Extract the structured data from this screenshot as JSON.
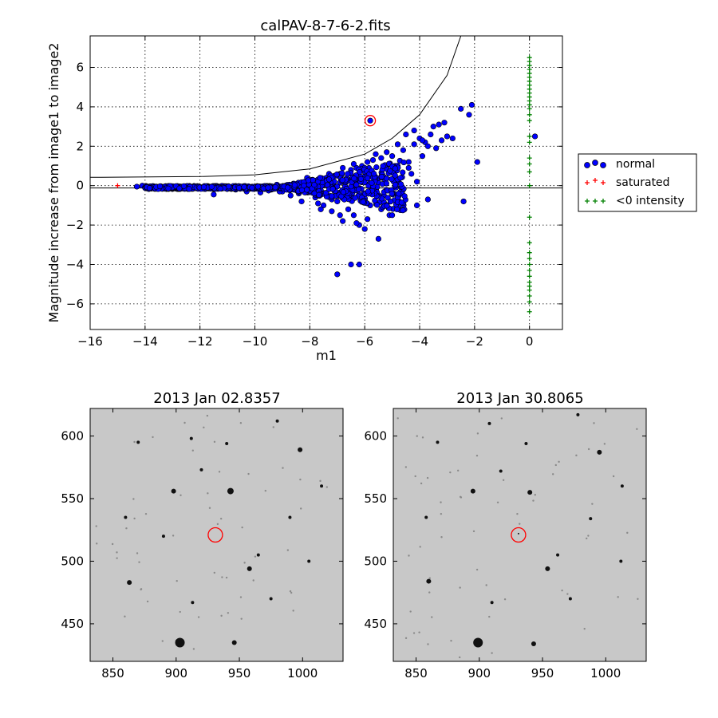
{
  "chart_data": [
    {
      "type": "scatter",
      "title": "calPAV-8-7-6-2.fits",
      "xlabel": "m1",
      "ylabel": "Magnitude increase from image1 to image2",
      "xlim": [
        -16,
        1.2
      ],
      "ylim": [
        -7.3,
        7.6
      ],
      "xticks": [
        -16,
        -14,
        -12,
        -10,
        -8,
        -6,
        -4,
        -2,
        0
      ],
      "xtick_labels": [
        "−16",
        "−14",
        "−12",
        "−10",
        "−8",
        "−6",
        "−4",
        "−2",
        "0"
      ],
      "yticks": [
        -6,
        -4,
        -2,
        0,
        2,
        4,
        6
      ],
      "ytick_labels": [
        "−6",
        "−4",
        "−2",
        "0",
        "2",
        "4",
        "6"
      ],
      "grid": true,
      "legend_position": "outside-right",
      "legend": [
        {
          "label": "normal",
          "marker": "circle",
          "color": "#0000ff"
        },
        {
          "label": "saturated",
          "marker": "plus",
          "color": "#ff0000"
        },
        {
          "label": "<0 intensity",
          "marker": "plus",
          "color": "#008000"
        }
      ],
      "series": [
        {
          "name": "normal",
          "color": "#0000ff",
          "points": [
            [
              -14.3,
              -0.05
            ],
            [
              -14.1,
              0.0
            ],
            [
              -13.9,
              -0.08
            ],
            [
              -13.6,
              -0.1
            ],
            [
              -13.4,
              -0.05
            ],
            [
              -13.2,
              -0.12
            ],
            [
              -13.0,
              -0.06
            ],
            [
              -12.8,
              -0.1
            ],
            [
              -12.6,
              -0.04
            ],
            [
              -12.4,
              -0.08
            ],
            [
              -12.2,
              -0.12
            ],
            [
              -12.0,
              -0.06
            ],
            [
              -11.8,
              -0.15
            ],
            [
              -11.6,
              -0.08
            ],
            [
              -11.5,
              -0.45
            ],
            [
              -11.3,
              -0.1
            ],
            [
              -11.1,
              -0.05
            ],
            [
              -10.9,
              -0.12
            ],
            [
              -10.7,
              -0.2
            ],
            [
              -10.5,
              -0.1
            ],
            [
              -10.3,
              -0.3
            ],
            [
              -10.1,
              -0.05
            ],
            [
              -9.9,
              -0.15
            ],
            [
              -9.8,
              -0.35
            ],
            [
              -9.6,
              -0.1
            ],
            [
              -9.4,
              -0.2
            ],
            [
              -9.2,
              0.05
            ],
            [
              -9.0,
              -0.3
            ],
            [
              -8.8,
              -0.15
            ],
            [
              -8.6,
              0.1
            ],
            [
              -8.4,
              -0.4
            ],
            [
              -8.2,
              0.15
            ],
            [
              -8.0,
              -0.25
            ],
            [
              -7.9,
              0.3
            ],
            [
              -7.8,
              -0.6
            ],
            [
              -7.6,
              0.2
            ],
            [
              -7.5,
              -1.0
            ],
            [
              -7.4,
              0.4
            ],
            [
              -7.3,
              -0.5
            ],
            [
              -7.2,
              -1.3
            ],
            [
              -7.1,
              0.5
            ],
            [
              -7.0,
              -0.8
            ],
            [
              -6.9,
              0.6
            ],
            [
              -6.8,
              -1.8
            ],
            [
              -6.7,
              0.3
            ],
            [
              -6.6,
              -1.2
            ],
            [
              -6.5,
              0.8
            ],
            [
              -6.4,
              -1.5
            ],
            [
              -6.3,
              0.9
            ],
            [
              -6.2,
              -2.0
            ],
            [
              -6.1,
              1.0
            ],
            [
              -6.0,
              -2.2
            ],
            [
              -5.9,
              1.2
            ],
            [
              -5.8,
              -1.0
            ],
            [
              -5.7,
              0.4
            ],
            [
              -5.6,
              1.6
            ],
            [
              -5.5,
              -2.7
            ],
            [
              -5.4,
              1.4
            ],
            [
              -5.3,
              -0.5
            ],
            [
              -5.2,
              1.7
            ],
            [
              -5.1,
              -1.5
            ],
            [
              -5.0,
              1.5
            ],
            [
              -4.9,
              0.5
            ],
            [
              -4.8,
              2.1
            ],
            [
              -4.7,
              -0.4
            ],
            [
              -4.6,
              1.8
            ],
            [
              -4.5,
              2.6
            ],
            [
              -4.4,
              1.2
            ],
            [
              -4.3,
              0.6
            ],
            [
              -4.2,
              2.8
            ],
            [
              -4.1,
              0.2
            ],
            [
              -4.0,
              2.4
            ],
            [
              -3.9,
              1.5
            ],
            [
              -3.8,
              2.2
            ],
            [
              -3.7,
              2.0
            ],
            [
              -3.6,
              2.6
            ],
            [
              -3.5,
              3.0
            ],
            [
              -3.4,
              1.9
            ],
            [
              -3.3,
              3.1
            ],
            [
              -3.2,
              2.3
            ],
            [
              -3.1,
              3.2
            ],
            [
              -3.0,
              2.5
            ],
            [
              -2.8,
              2.4
            ],
            [
              -2.5,
              3.9
            ],
            [
              -2.2,
              3.6
            ],
            [
              -2.1,
              4.1
            ],
            [
              -1.9,
              1.2
            ],
            [
              -2.4,
              -0.8
            ],
            [
              -3.7,
              -0.7
            ],
            [
              -4.1,
              -1.0
            ],
            [
              -6.5,
              -4.0
            ],
            [
              -7.0,
              -4.5
            ],
            [
              -6.2,
              -4.0
            ],
            [
              -5.8,
              3.3
            ],
            [
              0.2,
              2.5
            ],
            [
              -9.5,
              -0.25
            ],
            [
              -9.1,
              -0.3
            ],
            [
              -8.7,
              -0.5
            ],
            [
              -8.3,
              -0.8
            ],
            [
              -8.1,
              0.4
            ],
            [
              -7.7,
              -0.9
            ],
            [
              -7.3,
              0.6
            ],
            [
              -6.9,
              -1.5
            ],
            [
              -6.3,
              -1.9
            ],
            [
              -6.1,
              0.2
            ],
            [
              -5.9,
              -1.7
            ],
            [
              -5.4,
              -1.2
            ],
            [
              -5.0,
              -1.5
            ],
            [
              -4.6,
              -0.2
            ],
            [
              -4.4,
              0.9
            ],
            [
              -4.2,
              2.1
            ],
            [
              -3.9,
              2.3
            ],
            [
              -6.8,
              0.9
            ],
            [
              -6.4,
              1.1
            ],
            [
              -6.0,
              0.7
            ],
            [
              -5.7,
              1.3
            ],
            [
              -5.3,
              0.9
            ],
            [
              -4.9,
              1.0
            ],
            [
              -7.6,
              -1.2
            ],
            [
              -7.2,
              -0.7
            ]
          ],
          "highlighted_point": [
            -5.8,
            3.3
          ]
        },
        {
          "name": "saturated",
          "color": "#ff0000",
          "points": [
            [
              -15.0,
              0.0
            ]
          ]
        },
        {
          "name": "<0 intensity",
          "color": "#008000",
          "points": [
            [
              0,
              6.5
            ],
            [
              0,
              6.3
            ],
            [
              0,
              6.1
            ],
            [
              0,
              5.9
            ],
            [
              0,
              5.7
            ],
            [
              0,
              5.5
            ],
            [
              0,
              5.3
            ],
            [
              0,
              5.1
            ],
            [
              0,
              4.9
            ],
            [
              0,
              4.7
            ],
            [
              0,
              4.5
            ],
            [
              0,
              4.3
            ],
            [
              0,
              4.1
            ],
            [
              0,
              3.9
            ],
            [
              0,
              3.6
            ],
            [
              0,
              3.3
            ],
            [
              0,
              2.5
            ],
            [
              0,
              2.2
            ],
            [
              0,
              1.4
            ],
            [
              0,
              1.1
            ],
            [
              0,
              0.7
            ],
            [
              0,
              0.0
            ],
            [
              0,
              -1.6
            ],
            [
              0,
              -2.9
            ],
            [
              0,
              -3.4
            ],
            [
              0,
              -3.7
            ],
            [
              0,
              -4.0
            ],
            [
              0,
              -4.3
            ],
            [
              0,
              -4.6
            ],
            [
              0,
              -4.9
            ],
            [
              0,
              -5.1
            ],
            [
              0,
              -5.3
            ],
            [
              0,
              -5.6
            ],
            [
              0,
              -5.9
            ],
            [
              0,
              -6.4
            ]
          ]
        }
      ],
      "lines": [
        {
          "kind": "horizontal",
          "y": -0.12
        },
        {
          "kind": "curve",
          "description": "upper envelope",
          "points": [
            [
              -16,
              0.42
            ],
            [
              -12,
              0.46
            ],
            [
              -10,
              0.55
            ],
            [
              -8,
              0.85
            ],
            [
              -6,
              1.6
            ],
            [
              -5,
              2.4
            ],
            [
              -4,
              3.6
            ],
            [
              -3,
              5.6
            ],
            [
              -2.5,
              7.6
            ]
          ]
        }
      ]
    },
    {
      "type": "image",
      "title": "2013 Jan 02.8357",
      "xlim": [
        832,
        1032
      ],
      "ylim": [
        420,
        622
      ],
      "xticks": [
        850,
        900,
        950,
        1000
      ],
      "yticks": [
        450,
        500,
        550,
        600
      ],
      "marker_circle": [
        931,
        521
      ],
      "stars": [
        [
          903,
          435,
          6
        ],
        [
          946,
          435,
          3
        ],
        [
          863,
          483,
          3
        ],
        [
          958,
          494,
          3
        ],
        [
          913,
          467,
          2
        ],
        [
          943,
          556,
          4
        ],
        [
          898,
          556,
          3
        ],
        [
          998,
          589,
          3
        ],
        [
          965,
          505,
          2
        ],
        [
          990,
          535,
          2
        ],
        [
          920,
          573,
          2
        ],
        [
          940,
          594,
          2
        ],
        [
          870,
          595,
          2
        ],
        [
          980,
          612,
          2
        ],
        [
          912,
          598,
          2
        ],
        [
          890,
          520,
          2
        ],
        [
          1005,
          500,
          2
        ],
        [
          860,
          535,
          2
        ],
        [
          975,
          470,
          2
        ],
        [
          1015,
          560,
          2
        ]
      ]
    },
    {
      "type": "image",
      "title": "2013 Jan 30.8065",
      "xlim": [
        832,
        1032
      ],
      "ylim": [
        420,
        622
      ],
      "xticks": [
        850,
        900,
        950,
        1000
      ],
      "yticks": [
        450,
        500,
        550,
        600
      ],
      "marker_circle": [
        931,
        521
      ],
      "stars": [
        [
          899,
          435,
          6
        ],
        [
          943,
          434,
          3
        ],
        [
          860,
          484,
          3
        ],
        [
          954,
          494,
          3
        ],
        [
          910,
          467,
          2
        ],
        [
          940,
          555,
          3
        ],
        [
          895,
          556,
          3
        ],
        [
          995,
          587,
          3
        ],
        [
          962,
          505,
          2
        ],
        [
          988,
          534,
          2
        ],
        [
          917,
          572,
          2
        ],
        [
          937,
          594,
          2
        ],
        [
          867,
          595,
          2
        ],
        [
          978,
          617,
          2
        ],
        [
          908,
          610,
          2
        ],
        [
          931,
          522,
          1
        ],
        [
          1012,
          500,
          2
        ],
        [
          858,
          535,
          2
        ],
        [
          972,
          470,
          2
        ],
        [
          1013,
          560,
          2
        ]
      ]
    }
  ]
}
